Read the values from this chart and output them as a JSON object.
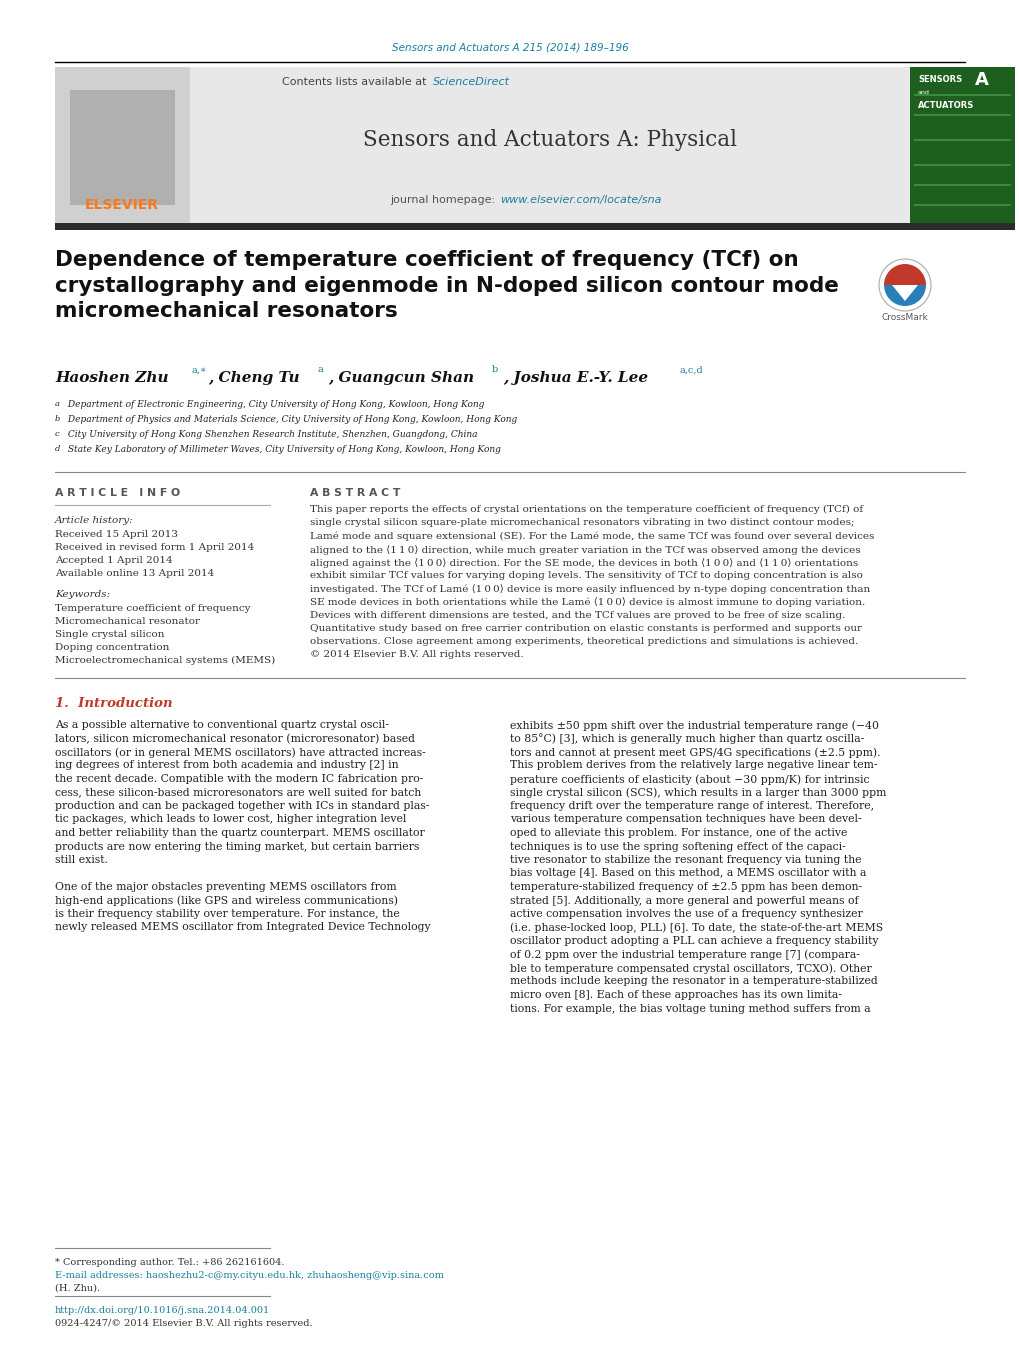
{
  "page_width": 10.2,
  "page_height": 13.51,
  "bg_color": "#ffffff",
  "top_journal_text": "Sensors and Actuators A 215 (2014) 189–196",
  "top_journal_color": "#1a7fa0",
  "header_bg": "#e8e8e8",
  "header_contents": "Contents lists available at",
  "header_sciencedirect": "ScienceDirect",
  "header_sciencedirect_color": "#1a7fa0",
  "journal_title": "Sensors and Actuators A: Physical",
  "journal_homepage_label": "journal homepage:",
  "journal_homepage_url": "www.elsevier.com/locate/sna",
  "journal_homepage_color": "#1a7fa0",
  "elsevier_color": "#f47920",
  "dark_bar_color": "#2c2c2c",
  "paper_title": "Dependence of temperature coefficient of frequency (TCf) on\ncrystallography and eigenmode in N-doped silicon contour mode\nmicromechanical resonators",
  "paper_title_fontsize": 15.5,
  "article_info_title": "A R T I C L E   I N F O",
  "abstract_title": "A B S T R A C T",
  "article_history_label": "Article history:",
  "received": "Received 15 April 2013",
  "received_revised": "Received in revised form 1 April 2014",
  "accepted": "Accepted 1 April 2014",
  "available": "Available online 13 April 2014",
  "keywords_label": "Keywords:",
  "keywords": [
    "Temperature coefficient of frequency",
    "Micromechanical resonator",
    "Single crystal silicon",
    "Doping concentration",
    "Microelectromechanical systems (MEMS)"
  ],
  "affiliations": [
    "a Department of Electronic Engineering, City University of Hong Kong, Kowloon, Hong Kong",
    "b Department of Physics and Materials Science, City University of Hong Kong, Kowloon, Hong Kong",
    "c City University of Hong Kong Shenzhen Research Institute, Shenzhen, Guangdong, China",
    "d State Key Laboratory of Millimeter Waves, City University of Hong Kong, Kowloon, Hong Kong"
  ],
  "abstract_lines": [
    "This paper reports the effects of crystal orientations on the temperature coefficient of frequency (TCf) of",
    "single crystal silicon square-plate micromechanical resonators vibrating in two distinct contour modes;",
    "Lamé mode and square extensional (SE). For the Lamé mode, the same TCf was found over several devices",
    "aligned to the ⟨1 1 0⟩ direction, while much greater variation in the TCf was observed among the devices",
    "aligned against the ⟨1 0 0⟩ direction. For the SE mode, the devices in both ⟨1 0 0⟩ and ⟨1 1 0⟩ orientations",
    "exhibit similar TCf values for varying doping levels. The sensitivity of TCf to doping concentration is also",
    "investigated. The TCf of Lamé ⟨1 0 0⟩ device is more easily influenced by n-type doping concentration than",
    "SE mode devices in both orientations while the Lamé ⟨1 0 0⟩ device is almost immune to doping variation.",
    "Devices with different dimensions are tested, and the TCf values are proved to be free of size scaling.",
    "Quantitative study based on free carrier contribution on elastic constants is performed and supports our",
    "observations. Close agreement among experiments, theoretical predictions and simulations is achieved.",
    "© 2014 Elsevier B.V. All rights reserved."
  ],
  "intro_title": "1.  Introduction",
  "intro_lines_col1": [
    "As a possible alternative to conventional quartz crystal oscil-",
    "lators, silicon micromechanical resonator (microresonator) based",
    "oscillators (or in general MEMS oscillators) have attracted increas-",
    "ing degrees of interest from both academia and industry [2] in",
    "the recent decade. Compatible with the modern IC fabrication pro-",
    "cess, these silicon-based microresonators are well suited for batch",
    "production and can be packaged together with ICs in standard plas-",
    "tic packages, which leads to lower cost, higher integration level",
    "and better reliability than the quartz counterpart. MEMS oscillator",
    "products are now entering the timing market, but certain barriers",
    "still exist.",
    "",
    "One of the major obstacles preventing MEMS oscillators from",
    "high-end applications (like GPS and wireless communications)",
    "is their frequency stability over temperature. For instance, the",
    "newly released MEMS oscillator from Integrated Device Technology"
  ],
  "intro_lines_col2": [
    "exhibits ±50 ppm shift over the industrial temperature range (−40",
    "to 85°C) [3], which is generally much higher than quartz oscilla-",
    "tors and cannot at present meet GPS/4G specifications (±2.5 ppm).",
    "This problem derives from the relatively large negative linear tem-",
    "perature coefficients of elasticity (about −30 ppm/K) for intrinsic",
    "single crystal silicon (SCS), which results in a larger than 3000 ppm",
    "frequency drift over the temperature range of interest. Therefore,",
    "various temperature compensation techniques have been devel-",
    "oped to alleviate this problem. For instance, one of the active",
    "techniques is to use the spring softening effect of the capaci-",
    "tive resonator to stabilize the resonant frequency via tuning the",
    "bias voltage [4]. Based on this method, a MEMS oscillator with a",
    "temperature-stabilized frequency of ±2.5 ppm has been demon-",
    "strated [5]. Additionally, a more general and powerful means of",
    "active compensation involves the use of a frequency synthesizer",
    "(i.e. phase-locked loop, PLL) [6]. To date, the state-of-the-art MEMS",
    "oscillator product adopting a PLL can achieve a frequency stability",
    "of 0.2 ppm over the industrial temperature range [7] (compara-",
    "ble to temperature compensated crystal oscillators, TCXO). Other",
    "methods include keeping the resonator in a temperature-stabilized",
    "micro oven [8]. Each of these approaches has its own limita-",
    "tions. For example, the bias voltage tuning method suffers from a"
  ],
  "footnote_star": "* Corresponding author. Tel.: +86 262161604.",
  "footnote_email": "E-mail addresses: haoshezhu2-c@my.cityu.edu.hk, zhuhaosheng@vip.sina.com",
  "footnote_name": "(H. Zhu).",
  "footnote_doi": "http://dx.doi.org/10.1016/j.sna.2014.04.001",
  "footnote_issn": "0924-4247/© 2014 Elsevier B.V. All rights reserved."
}
